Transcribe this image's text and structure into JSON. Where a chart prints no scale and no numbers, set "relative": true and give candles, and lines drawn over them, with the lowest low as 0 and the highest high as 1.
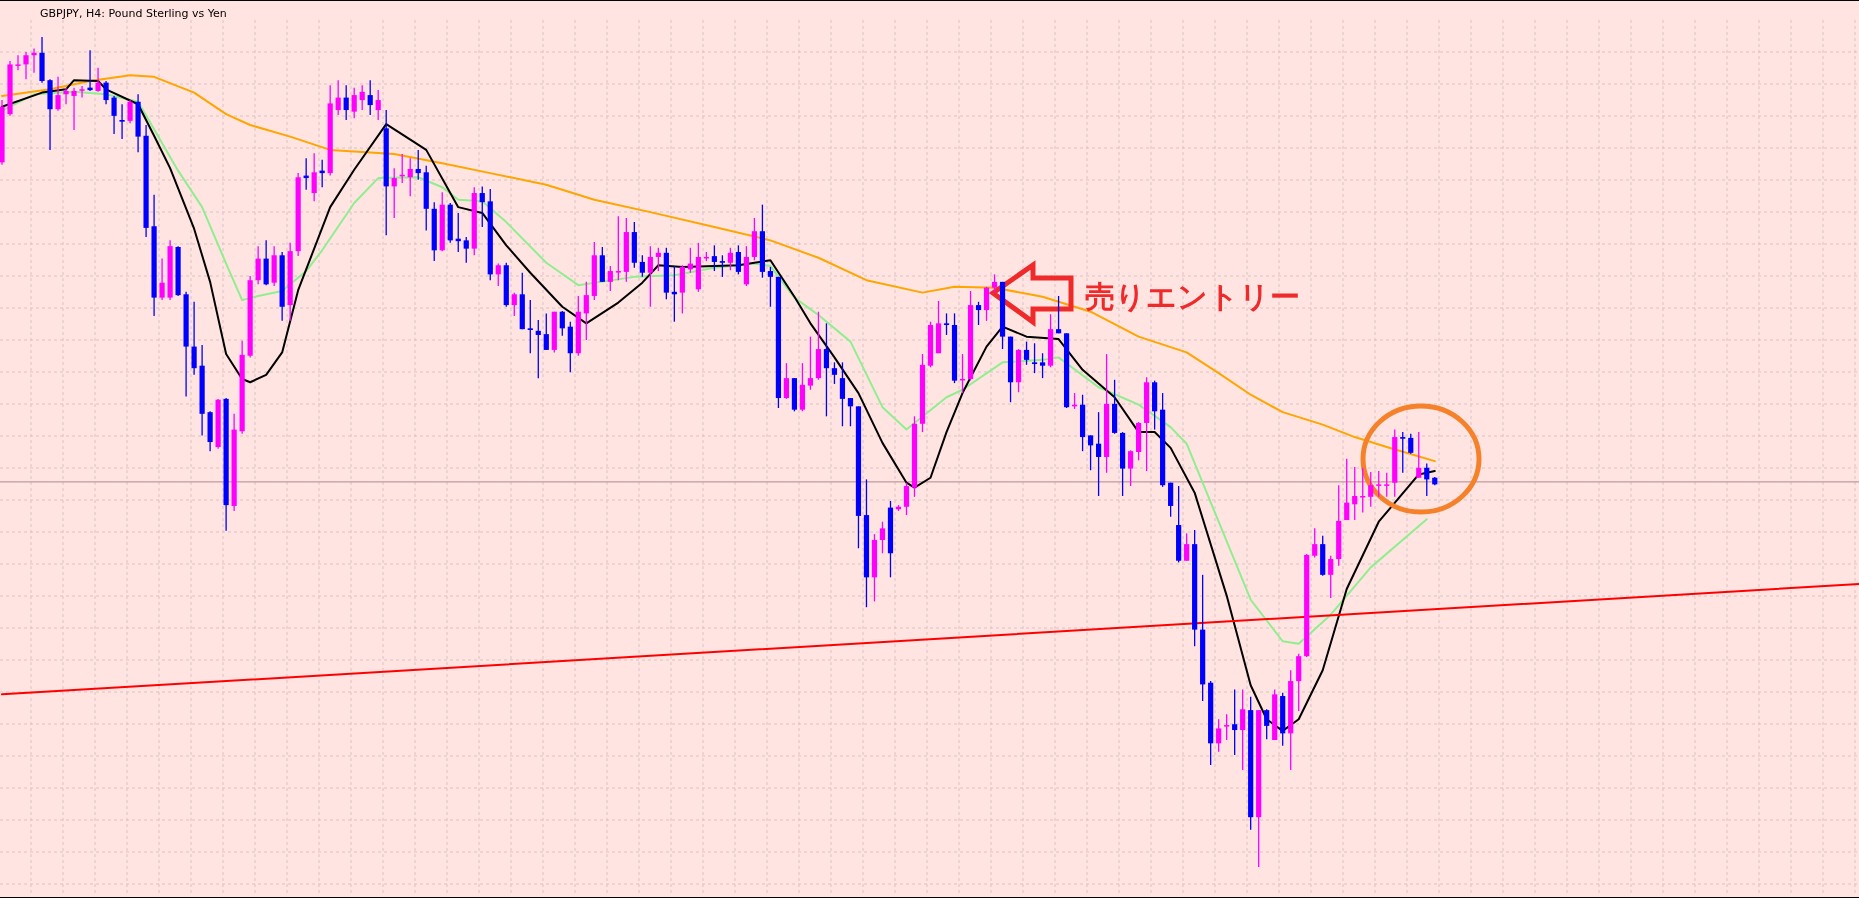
{
  "chart_data": {
    "type": "candlestick",
    "title": "GBPJPY, H4:  Pound Sterling vs Yen",
    "relative": true,
    "grid": true,
    "categories": [
      null,
      null,
      null,
      null,
      null,
      null,
      null,
      null,
      null,
      null,
      null,
      null,
      null,
      null,
      null,
      null,
      null,
      null,
      null,
      null,
      null,
      null,
      null,
      null,
      null,
      null,
      null,
      null,
      null,
      null,
      null,
      null,
      null,
      null,
      null,
      null,
      null,
      null,
      null,
      null,
      null,
      null,
      null,
      null,
      null,
      null,
      null,
      null,
      null,
      null,
      null,
      null,
      null,
      null,
      null,
      null,
      null,
      null,
      null,
      null,
      null,
      null,
      null,
      null,
      null,
      null,
      null,
      null,
      null,
      null,
      null,
      null,
      null,
      null,
      null,
      null,
      null,
      null,
      null,
      null,
      null,
      null,
      null,
      null,
      null,
      null,
      null,
      null,
      null,
      null,
      null,
      null,
      null,
      null,
      null,
      null,
      null,
      null,
      null,
      null,
      null,
      null,
      null,
      null,
      null,
      null,
      null,
      null,
      null,
      null,
      null,
      null,
      null,
      null,
      null,
      null,
      null,
      null,
      null,
      null,
      null,
      null,
      null,
      null,
      null,
      null,
      null,
      null,
      null,
      null,
      null,
      null,
      null,
      null,
      null,
      null,
      null,
      null,
      null,
      null,
      null,
      null,
      null,
      null,
      null,
      null,
      null,
      null,
      null,
      null,
      null,
      null,
      null,
      null,
      null,
      null,
      null,
      null,
      null,
      null,
      null,
      null,
      null,
      null,
      null,
      null,
      null,
      null,
      null,
      null,
      null,
      null,
      null,
      null,
      null,
      null,
      null,
      null,
      null,
      null,
      null,
      null,
      null,
      null,
      null,
      null,
      null,
      null,
      null,
      null,
      null,
      null,
      null,
      null,
      null,
      null,
      null,
      null,
      null,
      null,
      null,
      null,
      null,
      null,
      null,
      null,
      null,
      null,
      null,
      null,
      null,
      null,
      null,
      null,
      null,
      null,
      null,
      null,
      null,
      null,
      null,
      null,
      null,
      null,
      null,
      null,
      null,
      null,
      null,
      null,
      null,
      null,
      null
    ],
    "colors": [
      "#ff00ff",
      "#ff00ff",
      "#ff00ff",
      "#ff00ff",
      "#ff00ff",
      "#0000ff",
      "#0000ff",
      "#ff00ff",
      "#ff00ff",
      "#ff00ff",
      "#ff00ff",
      "#0000ff",
      "#ff00ff",
      "#0000ff",
      "#0000ff",
      "#0000ff",
      "#ff00ff",
      "#0000ff",
      "#0000ff",
      "#0000ff",
      "#ff00ff",
      "#ff00ff",
      "#0000ff",
      "#0000ff",
      "#0000ff",
      "#0000ff",
      "#0000ff",
      "#ff00ff",
      "#0000ff",
      "#ff00ff",
      "#ff00ff",
      "#ff00ff",
      "#ff00ff",
      "#0000ff",
      "#ff00ff",
      "#0000ff",
      "#ff00ff",
      "#ff00ff",
      "#0000ff",
      "#ff00ff",
      "#0000ff",
      "#ff00ff",
      "#ff00ff",
      "#0000ff",
      "#ff00ff",
      "#ff00ff",
      "#0000ff",
      "#ff00ff",
      "#0000ff",
      "#ff00ff",
      "#ff00ff",
      "#ff00ff",
      "#0000ff",
      "#0000ff",
      "#0000ff",
      "#ff00ff",
      "#0000ff",
      "#0000ff",
      "#0000ff",
      "#ff00ff",
      "#0000ff",
      "#0000ff",
      "#ff00ff",
      "#0000ff",
      "#ff00ff",
      "#0000ff",
      "#0000ff",
      "#0000ff",
      "#0000ff",
      "#ff00ff",
      "#0000ff",
      "#0000ff",
      "#ff00ff",
      "#ff00ff",
      "#ff00ff",
      "#0000ff",
      "#ff00ff",
      "#ff00ff",
      "#ff00ff",
      "#0000ff",
      "#0000ff",
      "#ff00ff",
      "#ff00ff",
      "#0000ff",
      "#0000ff",
      "#ff00ff",
      "#ff00ff",
      "#ff00ff",
      "#ff00ff",
      "#0000ff",
      "#0000ff",
      "#ff00ff",
      "#0000ff",
      "#ff00ff",
      "#ff00ff",
      "#0000ff",
      "#0000ff",
      "#0000ff",
      "#ff00ff",
      "#0000ff",
      "#ff00ff",
      "#ff00ff",
      "#ff00ff",
      "#0000ff",
      "#0000ff",
      "#0000ff",
      "#0000ff",
      "#0000ff",
      "#0000ff",
      "#ff00ff",
      "#ff00ff",
      "#0000ff",
      "#ff00ff",
      "#ff00ff",
      "#ff00ff",
      "#ff00ff",
      "#ff00ff",
      "#ff00ff",
      "#0000ff",
      "#0000ff",
      "#ff00ff",
      "#ff00ff",
      "#0000ff",
      "#ff00ff",
      "#ff00ff",
      "#0000ff",
      "#0000ff",
      "#ff00ff",
      "#0000ff",
      "#0000ff",
      "#0000ff",
      "#ff00ff",
      "#0000ff",
      "#0000ff",
      "#ff00ff",
      "#0000ff",
      "#0000ff",
      "#0000ff",
      "#ff00ff",
      "#0000ff",
      "#0000ff",
      "#ff00ff",
      "#ff00ff",
      "#ff00ff",
      "#0000ff",
      "#0000ff",
      "#0000ff",
      "#0000ff",
      "#ff00ff",
      "#0000ff",
      "#0000ff",
      "#0000ff",
      "#ff00ff",
      "#ff00ff",
      "#0000ff",
      "#ff00ff",
      "#0000ff",
      "#ff00ff",
      "#0000ff",
      "#ff00ff",
      "#0000ff",
      "#ff00ff",
      "#ff00ff",
      "#ff00ff",
      "#ff00ff",
      "#0000ff",
      "#ff00ff",
      "#ff00ff",
      "#ff00ff",
      "#ff00ff",
      "#ff00ff",
      "#ff00ff",
      "#ff00ff",
      "#ff00ff",
      "#ff00ff",
      "#0000ff",
      "#0000ff",
      "#ff00ff",
      "#0000ff",
      "#0000ff",
      null,
      null,
      null,
      null,
      null,
      null,
      null,
      null,
      null,
      null,
      null,
      null,
      null,
      null,
      null,
      null,
      null,
      null,
      null,
      null,
      null,
      null,
      null,
      null,
      null,
      null,
      null,
      null,
      null,
      null,
      null,
      null,
      null,
      null,
      null,
      null,
      null,
      null,
      null,
      null,
      null,
      null,
      null,
      null,
      null,
      null,
      null,
      null,
      null,
      null,
      null,
      null,
      null
    ],
    "ohlc": [
      [
        0.849,
        0.924,
        0.846,
        0.916
      ],
      [
        0.907,
        0.971,
        0.905,
        0.967
      ],
      [
        0.966,
        0.978,
        0.96,
        0.967
      ],
      [
        0.967,
        0.982,
        0.949,
        0.978
      ],
      [
        0.978,
        0.986,
        0.957,
        0.981
      ],
      [
        0.981,
        1,
        0.945,
        0.947
      ],
      [
        0.948,
        0.949,
        0.864,
        0.913
      ],
      [
        0.913,
        0.952,
        0.911,
        0.93
      ],
      [
        0.931,
        0.939,
        0.919,
        0.935
      ],
      [
        0.929,
        0.939,
        0.888,
        0.935
      ],
      [
        0.936,
        0.941,
        0.927,
        0.937
      ],
      [
        0.939,
        0.984,
        0.935,
        0.936
      ],
      [
        0.935,
        0.963,
        0.934,
        0.945
      ],
      [
        0.945,
        0.947,
        0.919,
        0.924
      ],
      [
        0.927,
        0.929,
        0.883,
        0.905
      ],
      [
        0.9,
        0.919,
        0.877,
        0.898
      ],
      [
        0.899,
        0.924,
        0.896,
        0.922
      ],
      [
        0.922,
        0.931,
        0.861,
        0.88
      ],
      [
        0.881,
        0.894,
        0.759,
        0.77
      ],
      [
        0.772,
        0.81,
        0.664,
        0.686
      ],
      [
        0.686,
        0.733,
        0.683,
        0.704
      ],
      [
        0.686,
        0.755,
        0.683,
        0.748
      ],
      [
        0.747,
        0.748,
        0.688,
        0.689
      ],
      [
        0.69,
        0.693,
        0.567,
        0.627
      ],
      [
        0.627,
        0.681,
        0.593,
        0.601
      ],
      [
        0.604,
        0.629,
        0.52,
        0.546
      ],
      [
        0.548,
        0.549,
        0.501,
        0.512
      ],
      [
        0.506,
        0.564,
        0.504,
        0.563
      ],
      [
        0.564,
        0.565,
        0.405,
        0.436
      ],
      [
        0.435,
        0.546,
        0.429,
        0.527
      ],
      [
        0.525,
        0.634,
        0.522,
        0.617
      ],
      [
        0.616,
        0.712,
        0.614,
        0.707
      ],
      [
        0.707,
        0.748,
        0.702,
        0.733
      ],
      [
        0.733,
        0.755,
        0.701,
        0.702
      ],
      [
        0.704,
        0.748,
        0.7,
        0.737
      ],
      [
        0.737,
        0.741,
        0.658,
        0.675
      ],
      [
        0.677,
        0.752,
        0.658,
        0.742
      ],
      [
        0.742,
        0.836,
        0.736,
        0.831
      ],
      [
        0.833,
        0.854,
        0.816,
        0.83
      ],
      [
        0.812,
        0.86,
        0.802,
        0.837
      ],
      [
        0.839,
        0.852,
        0.819,
        0.836
      ],
      [
        0.836,
        0.942,
        0.833,
        0.92
      ],
      [
        0.912,
        0.948,
        0.906,
        0.927
      ],
      [
        0.927,
        0.942,
        0.9,
        0.912
      ],
      [
        0.91,
        0.939,
        0.902,
        0.93
      ],
      [
        0.924,
        0.942,
        0.912,
        0.934
      ],
      [
        0.93,
        0.948,
        0.906,
        0.918
      ],
      [
        0.912,
        0.936,
        0.9,
        0.924
      ],
      [
        0.89,
        0.912,
        0.761,
        0.82
      ],
      [
        0.82,
        0.842,
        0.782,
        0.83
      ],
      [
        0.833,
        0.859,
        0.824,
        0.834
      ],
      [
        0.831,
        0.854,
        0.808,
        0.841
      ],
      [
        0.841,
        0.864,
        0.828,
        0.836
      ],
      [
        0.837,
        0.845,
        0.767,
        0.793
      ],
      [
        0.793,
        0.801,
        0.73,
        0.743
      ],
      [
        0.743,
        0.813,
        0.742,
        0.798
      ],
      [
        0.798,
        0.8,
        0.752,
        0.755
      ],
      [
        0.757,
        0.788,
        0.741,
        0.754
      ],
      [
        0.755,
        0.759,
        0.728,
        0.745
      ],
      [
        0.745,
        0.819,
        0.737,
        0.812
      ],
      [
        0.812,
        0.82,
        0.771,
        0.801
      ],
      [
        0.802,
        0.817,
        0.707,
        0.714
      ],
      [
        0.714,
        0.727,
        0.7,
        0.725
      ],
      [
        0.725,
        0.728,
        0.675,
        0.677
      ],
      [
        0.677,
        0.692,
        0.664,
        0.69
      ],
      [
        0.69,
        0.716,
        0.648,
        0.648
      ],
      [
        0.649,
        0.683,
        0.619,
        0.647
      ],
      [
        0.646,
        0.659,
        0.589,
        0.641
      ],
      [
        0.642,
        0.667,
        0.623,
        0.623
      ],
      [
        0.623,
        0.669,
        0.62,
        0.669
      ],
      [
        0.669,
        0.67,
        0.64,
        0.649
      ],
      [
        0.651,
        0.657,
        0.596,
        0.619
      ],
      [
        0.619,
        0.688,
        0.616,
        0.669
      ],
      [
        0.667,
        0.705,
        0.635,
        0.689
      ],
      [
        0.688,
        0.753,
        0.683,
        0.737
      ],
      [
        0.737,
        0.747,
        0.705,
        0.705
      ],
      [
        0.705,
        0.724,
        0.694,
        0.718
      ],
      [
        0.717,
        0.784,
        0.707,
        0.718
      ],
      [
        0.717,
        0.782,
        0.705,
        0.765
      ],
      [
        0.765,
        0.777,
        0.722,
        0.728
      ],
      [
        0.729,
        0.737,
        0.711,
        0.716
      ],
      [
        0.716,
        0.748,
        0.675,
        0.735
      ],
      [
        0.735,
        0.746,
        0.718,
        0.74
      ],
      [
        0.74,
        0.746,
        0.684,
        0.692
      ],
      [
        0.693,
        0.724,
        0.657,
        0.69
      ],
      [
        0.692,
        0.725,
        0.667,
        0.723
      ],
      [
        0.72,
        0.746,
        0.716,
        0.727
      ],
      [
        0.696,
        0.752,
        0.693,
        0.735
      ],
      [
        0.734,
        0.741,
        0.73,
        0.735
      ],
      [
        0.736,
        0.749,
        0.718,
        0.729
      ],
      [
        0.73,
        0.737,
        0.711,
        0.728
      ],
      [
        0.728,
        0.746,
        0.719,
        0.74
      ],
      [
        0.741,
        0.749,
        0.714,
        0.717
      ],
      [
        0.702,
        0.748,
        0.7,
        0.735
      ],
      [
        0.735,
        0.782,
        0.731,
        0.766
      ],
      [
        0.766,
        0.798,
        0.71,
        0.717
      ],
      [
        0.718,
        0.723,
        0.675,
        0.711
      ],
      [
        0.711,
        0.711,
        0.553,
        0.565
      ],
      [
        0.565,
        0.607,
        0.564,
        0.589
      ],
      [
        0.589,
        0.589,
        0.549,
        0.551
      ],
      [
        0.551,
        0.607,
        0.549,
        0.581
      ],
      [
        0.58,
        0.639,
        0.575,
        0.589
      ],
      [
        0.589,
        0.669,
        0.587,
        0.624
      ],
      [
        0.624,
        0.655,
        0.543,
        0.601
      ],
      [
        0.601,
        0.608,
        0.582,
        0.593
      ],
      [
        0.589,
        0.608,
        0.531,
        0.564
      ],
      [
        0.565,
        0.565,
        0.531,
        0.555
      ],
      [
        0.555,
        0.555,
        0.384,
        0.423
      ],
      [
        0.424,
        0.467,
        0.313,
        0.349
      ],
      [
        0.349,
        0.401,
        0.32,
        0.394
      ],
      [
        0.394,
        0.416,
        0.378,
        0.408
      ],
      [
        0.433,
        0.441,
        0.349,
        0.378
      ],
      [
        0.431,
        0.436,
        0.429,
        0.434
      ],
      [
        0.434,
        0.463,
        0.424,
        0.459
      ],
      [
        0.457,
        0.543,
        0.446,
        0.534
      ],
      [
        0.534,
        0.618,
        0.524,
        0.605
      ],
      [
        0.604,
        0.657,
        0.602,
        0.653
      ],
      [
        0.619,
        0.682,
        0.619,
        0.655
      ],
      [
        0.655,
        0.667,
        0.641,
        0.653
      ],
      [
        0.653,
        0.667,
        0.583,
        0.586
      ],
      [
        0.587,
        0.618,
        0.571,
        0.588
      ],
      [
        0.588,
        0.694,
        0.586,
        0.677
      ],
      [
        0.677,
        0.681,
        0.653,
        0.671
      ],
      [
        0.671,
        0.699,
        0.658,
        0.698
      ],
      [
        0.698,
        0.714,
        0.692,
        0.705
      ],
      [
        0.705,
        0.705,
        0.624,
        0.639
      ],
      [
        0.639,
        0.639,
        0.56,
        0.584
      ],
      [
        0.584,
        0.624,
        0.572,
        0.623
      ],
      [
        0.623,
        0.633,
        0.605,
        0.611
      ],
      [
        0.608,
        0.631,
        0.595,
        0.606
      ],
      [
        0.608,
        0.619,
        0.589,
        0.604
      ],
      [
        0.604,
        0.666,
        0.602,
        0.648
      ],
      [
        0.648,
        0.688,
        0.643,
        0.643
      ],
      [
        0.643,
        0.643,
        0.553,
        0.554
      ],
      [
        0.555,
        0.571,
        0.552,
        0.557
      ],
      [
        0.557,
        0.569,
        0.501,
        0.518
      ],
      [
        0.52,
        0.52,
        0.478,
        0.508
      ],
      [
        0.51,
        0.548,
        0.447,
        0.494
      ],
      [
        0.494,
        0.618,
        0.475,
        0.558
      ],
      [
        0.558,
        0.587,
        0.522,
        0.523
      ],
      [
        0.523,
        0.524,
        0.447,
        0.48
      ],
      [
        0.48,
        0.502,
        0.459,
        0.501
      ],
      [
        0.5,
        0.536,
        0.49,
        0.535
      ],
      [
        0.535,
        0.59,
        0.477,
        0.584
      ],
      [
        0.584,
        0.586,
        0.527,
        0.549
      ],
      [
        0.551,
        0.571,
        0.458,
        0.46
      ],
      [
        0.463,
        0.463,
        0.422,
        0.435
      ],
      [
        0.412,
        0.459,
        0.367,
        0.369
      ],
      [
        0.369,
        0.402,
        0.369,
        0.389
      ],
      [
        0.389,
        0.406,
        0.266,
        0.286
      ],
      [
        0.286,
        0.352,
        0.2,
        0.22
      ],
      [
        0.222,
        0.224,
        0.123,
        0.149
      ],
      [
        0.149,
        0.178,
        0.139,
        0.167
      ],
      [
        0.17,
        0.184,
        0.153,
        0.171
      ],
      [
        0.172,
        0.214,
        0.135,
        0.165
      ],
      [
        0.165,
        0.214,
        0.117,
        0.19
      ],
      [
        0.189,
        0.205,
        0.045,
        0.06
      ],
      [
        0.06,
        0.189,
        0,
        0.189
      ],
      [
        0.189,
        0.19,
        0.154,
        0.17
      ],
      [
        0.153,
        0.214,
        0.153,
        0.208
      ],
      [
        0.206,
        0.21,
        0.146,
        0.161
      ],
      [
        0.161,
        0.237,
        0.117,
        0.224
      ],
      [
        0.224,
        0.257,
        0.188,
        0.254
      ],
      [
        0.254,
        0.377,
        0.253,
        0.376
      ],
      [
        0.375,
        0.408,
        0.373,
        0.389
      ],
      [
        0.389,
        0.399,
        0.351,
        0.352
      ],
      [
        0.352,
        0.375,
        0.324,
        0.371
      ],
      [
        0.371,
        0.46,
        0.363,
        0.417
      ],
      [
        0.418,
        0.492,
        0.418,
        0.439
      ],
      [
        0.437,
        0.482,
        0.418,
        0.447
      ],
      [
        0.446,
        0.481,
        0.427,
        0.447
      ],
      [
        0.446,
        0.476,
        0.434,
        0.46
      ],
      [
        0.46,
        0.477,
        0.446,
        0.461
      ],
      [
        0.46,
        0.475,
        0.446,
        0.461
      ],
      [
        0.463,
        0.527,
        0.446,
        0.518
      ],
      [
        0.518,
        0.524,
        0.475,
        0.516
      ],
      [
        0.517,
        0.522,
        0.498,
        0.499
      ],
      [
        0.469,
        0.524,
        0.469,
        0.481
      ],
      [
        0.481,
        0.486,
        0.447,
        0.467
      ],
      [
        0.469,
        0.47,
        0.46,
        0.461
      ],
      null,
      null,
      null,
      null,
      null,
      null,
      null,
      null,
      null,
      null,
      null,
      null,
      null,
      null,
      null,
      null,
      null,
      null,
      null,
      null,
      null,
      null,
      null,
      null,
      null,
      null,
      null,
      null,
      null,
      null,
      null,
      null,
      null,
      null,
      null,
      null,
      null,
      null,
      null,
      null,
      null,
      null,
      null,
      null,
      null,
      null,
      null,
      null,
      null,
      null,
      null,
      null,
      null
    ],
    "series": [
      {
        "type": "line",
        "color": "#ffa500",
        "values": [
          0.929,
          null,
          null,
          null,
          null,
          null,
          0.937,
          null,
          null,
          null,
          null,
          0.947,
          null,
          null,
          null,
          null,
          0.954,
          null,
          null,
          0.952,
          null,
          null,
          null,
          null,
          0.933,
          null,
          null,
          null,
          0.907,
          null,
          null,
          0.894,
          null,
          null,
          null,
          null,
          0.88,
          null,
          null,
          null,
          null,
          0.864,
          null,
          null,
          null,
          null,
          null,
          null,
          null,
          0.859,
          null,
          null,
          null,
          null,
          null,
          0.848,
          null,
          null,
          null,
          null,
          null,
          0.836,
          null,
          null,
          null,
          null,
          null,
          null,
          0.822,
          null,
          null,
          null,
          null,
          null,
          0.804,
          null,
          null,
          null,
          null,
          null,
          null,
          0.789,
          null,
          null,
          null,
          null,
          null,
          null,
          null,
          0.771,
          null,
          null,
          null,
          null,
          null,
          null,
          0.755,
          null,
          null,
          null,
          null,
          null,
          0.734,
          null,
          null,
          null,
          null,
          null,
          0.707,
          null,
          null,
          null,
          null,
          null,
          null,
          0.692,
          null,
          null,
          null,
          0.699,
          null,
          null,
          null,
          null,
          0.698,
          null,
          null,
          null,
          null,
          null,
          0.687,
          null,
          null,
          null,
          null,
          null,
          0.669,
          null,
          null,
          null,
          null,
          null,
          0.639,
          null,
          null,
          null,
          null,
          null,
          0.62,
          null,
          null,
          null,
          0.595,
          null,
          null,
          null,
          0.569,
          null,
          null,
          null,
          0.548,
          null,
          null,
          null,
          null,
          0.533,
          null,
          null,
          null,
          0.518,
          null,
          null,
          null,
          0.506,
          null,
          null,
          null,
          null,
          null,
          0.489,
          null,
          null,
          null,
          null,
          null,
          null,
          null,
          null,
          null,
          null,
          null,
          null,
          null,
          null,
          null,
          null,
          null,
          null,
          null,
          null,
          null,
          null,
          null,
          null,
          null,
          null,
          null,
          null,
          null,
          null,
          null,
          null,
          null,
          null,
          null,
          null,
          null,
          null,
          null,
          null,
          null,
          null,
          null,
          null,
          null,
          null,
          null,
          null,
          null,
          null,
          null,
          null,
          null
        ]
      },
      {
        "type": "line",
        "color": "#90ee90",
        "values": [
          0.911,
          null,
          null,
          null,
          0.931,
          null,
          null,
          null,
          null,
          0.934,
          null,
          null,
          null,
          0.931,
          null,
          null,
          null,
          0.922,
          null,
          0.889,
          null,
          null,
          0.839,
          null,
          null,
          0.795,
          null,
          null,
          0.727,
          null,
          0.683,
          null,
          0.688,
          null,
          null,
          0.694,
          null,
          null,
          0.718,
          null,
          0.743,
          null,
          null,
          null,
          0.8,
          null,
          null,
          0.83,
          null,
          null,
          null,
          null,
          0.831,
          null,
          null,
          0.819,
          null,
          0.804,
          null,
          null,
          0.802,
          null,
          null,
          0.777,
          null,
          null,
          null,
          null,
          0.728,
          null,
          null,
          null,
          0.701,
          null,
          null,
          null,
          null,
          null,
          null,
          0.711,
          null,
          null,
          null,
          null,
          0.713,
          null,
          null,
          null,
          null,
          0.722,
          null,
          null,
          null,
          null,
          0.727,
          null,
          0.724,
          null,
          null,
          0.686,
          null,
          null,
          0.665,
          null,
          null,
          null,
          0.633,
          null,
          null,
          null,
          0.554,
          null,
          null,
          0.527,
          null,
          null,
          null,
          null,
          0.566,
          null,
          0.575,
          null,
          null,
          null,
          null,
          0.608,
          null,
          null,
          null,
          null,
          0.611,
          null,
          0.614,
          null,
          null,
          null,
          null,
          0.578,
          null,
          null,
          null,
          null,
          0.557,
          null,
          null,
          null,
          0.53,
          null,
          0.51,
          null,
          null,
          null,
          0.416,
          null,
          null,
          null,
          0.322,
          null,
          null,
          null,
          0.272,
          null,
          0.269,
          null,
          null,
          null,
          0.304,
          null,
          null,
          null,
          null,
          0.361,
          null,
          null,
          null,
          null,
          null,
          null,
          0.419,
          null,
          null,
          null,
          null,
          null,
          null,
          null,
          null,
          null,
          null,
          null,
          null,
          null,
          null,
          null,
          null,
          null,
          null,
          null,
          null,
          null,
          null,
          null,
          null,
          null,
          null,
          null,
          null,
          null,
          null,
          null,
          null,
          null,
          null,
          null,
          null,
          null,
          null,
          null,
          null,
          null,
          null,
          null,
          null,
          null,
          null,
          null,
          null,
          null,
          null,
          null,
          null,
          null,
          null
        ]
      },
      {
        "type": "line",
        "color": "#000000",
        "values": [
          0.916,
          null,
          null,
          null,
          null,
          0.933,
          null,
          null,
          0.937,
          0.948,
          null,
          null,
          0.947,
          0.937,
          null,
          null,
          null,
          0.919,
          null,
          0.881,
          null,
          0.842,
          null,
          null,
          0.769,
          null,
          0.705,
          null,
          0.618,
          null,
          0.588,
          0.584,
          null,
          0.593,
          null,
          0.62,
          null,
          0.695,
          null,
          null,
          null,
          0.795,
          null,
          null,
          0.84,
          null,
          null,
          null,
          0.895,
          null,
          null,
          null,
          null,
          0.864,
          null,
          null,
          null,
          0.795,
          null,
          null,
          0.788,
          null,
          null,
          0.749,
          null,
          null,
          0.716,
          null,
          null,
          null,
          0.675,
          null,
          null,
          0.655,
          null,
          null,
          null,
          0.68,
          null,
          null,
          0.704,
          null,
          0.725,
          null,
          null,
          0.723,
          null,
          null,
          null,
          null,
          null,
          null,
          0.725,
          null,
          null,
          null,
          0.731,
          null,
          null,
          0.687,
          null,
          0.655,
          null,
          null,
          0.614,
          null,
          null,
          0.571,
          null,
          null,
          0.511,
          null,
          null,
          0.463,
          0.457,
          null,
          0.469,
          null,
          0.524,
          null,
          0.571,
          null,
          null,
          0.627,
          null,
          0.651,
          null,
          null,
          0.639,
          null,
          null,
          null,
          0.636,
          null,
          null,
          0.599,
          null,
          null,
          null,
          0.566,
          null,
          null,
          0.524,
          null,
          0.524,
          null,
          0.505,
          null,
          null,
          0.451,
          null,
          null,
          null,
          0.327,
          null,
          null,
          0.219,
          null,
          0.178,
          null,
          0.164,
          null,
          0.178,
          null,
          null,
          0.237,
          null,
          null,
          0.335,
          null,
          null,
          null,
          0.416,
          null,
          null,
          null,
          null,
          0.473,
          null,
          0.477,
          null,
          null,
          null,
          null,
          null,
          null,
          null,
          null,
          null,
          null,
          null,
          null,
          null,
          null,
          null,
          null,
          null,
          null,
          null,
          null,
          null,
          null,
          null,
          null,
          null,
          null,
          null,
          null,
          null,
          null,
          null,
          null,
          null,
          null,
          null,
          null,
          null,
          null,
          null,
          null,
          null,
          null,
          null,
          null,
          null,
          null,
          null,
          null,
          null,
          null,
          null,
          null,
          null
        ]
      },
      {
        "type": "line",
        "color": "#ff0000",
        "values": [
          0.208,
          null,
          null,
          null,
          null,
          null,
          null,
          null,
          null,
          null,
          null,
          null,
          null,
          null,
          null,
          null,
          null,
          null,
          null,
          null,
          null,
          null,
          null,
          null,
          null,
          null,
          null,
          null,
          null,
          null,
          null,
          null,
          null,
          null,
          null,
          null,
          null,
          null,
          null,
          null,
          null,
          null,
          null,
          null,
          null,
          null,
          null,
          null,
          null,
          null,
          null,
          null,
          null,
          null,
          null,
          null,
          null,
          null,
          null,
          null,
          null,
          null,
          null,
          null,
          null,
          null,
          null,
          null,
          null,
          null,
          null,
          null,
          null,
          null,
          null,
          null,
          null,
          null,
          null,
          null,
          null,
          null,
          null,
          null,
          null,
          null,
          null,
          null,
          null,
          null,
          null,
          null,
          null,
          null,
          null,
          null,
          null,
          null,
          null,
          null,
          null,
          null,
          null,
          null,
          null,
          null,
          null,
          null,
          null,
          null,
          null,
          null,
          null,
          null,
          null,
          null,
          null,
          null,
          null,
          null,
          null,
          null,
          null,
          null,
          null,
          null,
          null,
          null,
          null,
          null,
          null,
          null,
          null,
          null,
          null,
          null,
          null,
          null,
          null,
          null,
          null,
          null,
          null,
          null,
          null,
          null,
          null,
          null,
          null,
          null,
          null,
          null,
          null,
          null,
          null,
          null,
          null,
          null,
          null,
          null,
          null,
          null,
          null,
          null,
          null,
          null,
          null,
          null,
          null,
          null,
          null,
          null,
          null,
          null,
          null,
          null,
          null,
          null,
          null,
          null,
          null,
          null,
          null,
          null,
          null,
          null,
          null,
          null,
          null,
          null,
          null,
          null,
          null,
          null,
          null,
          null,
          null,
          null,
          null,
          null,
          null,
          null,
          null,
          null,
          null,
          null,
          null,
          null,
          null,
          null,
          null,
          null,
          null,
          null,
          null,
          null,
          null,
          null,
          null,
          null,
          null,
          null,
          null,
          null,
          null,
          null,
          null,
          null,
          null,
          null,
          null,
          null,
          0.341
        ]
      }
    ],
    "ref_lines": [
      {
        "axis": "y",
        "value": 0.464,
        "color": "#b08890"
      }
    ],
    "annotations": [
      "売りエントリー"
    ]
  }
}
